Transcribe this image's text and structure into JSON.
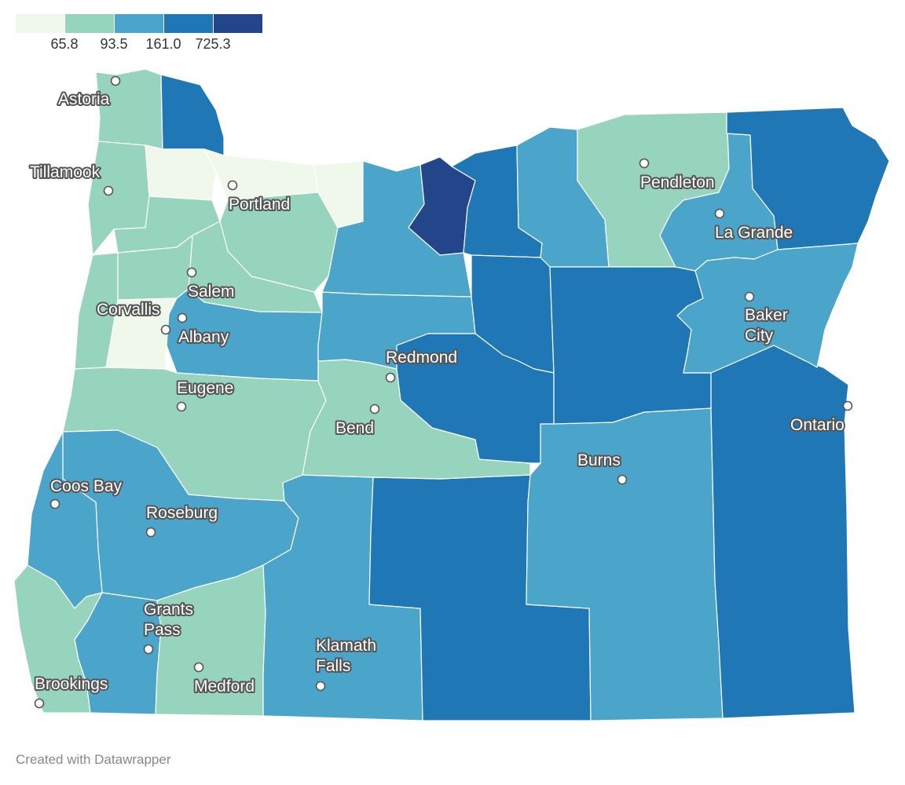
{
  "legend": {
    "colors": [
      "#eff8ea",
      "#97d4be",
      "#4ba5ca",
      "#1f78b5",
      "#23468b"
    ],
    "thresholds": [
      "65.8",
      "93.5",
      "161.0",
      "725.3"
    ]
  },
  "colors": {
    "c1": "#eff8ea",
    "c2": "#97d4be",
    "c3": "#4ba5ca",
    "c4": "#1f78b5",
    "c5": "#23468b"
  },
  "cities": [
    {
      "id": "astoria",
      "lines": [
        "Astoria"
      ]
    },
    {
      "id": "tillamook",
      "lines": [
        "Tillamook"
      ]
    },
    {
      "id": "portland",
      "lines": [
        "Portland"
      ]
    },
    {
      "id": "pendleton",
      "lines": [
        "Pendleton"
      ]
    },
    {
      "id": "la-grande",
      "lines": [
        "La Grande"
      ]
    },
    {
      "id": "salem",
      "lines": [
        "Salem"
      ]
    },
    {
      "id": "corvallis",
      "lines": [
        "Corvallis"
      ]
    },
    {
      "id": "albany",
      "lines": [
        "Albany"
      ]
    },
    {
      "id": "baker-city",
      "lines": [
        "Baker",
        "City"
      ]
    },
    {
      "id": "redmond",
      "lines": [
        "Redmond"
      ]
    },
    {
      "id": "eugene",
      "lines": [
        "Eugene"
      ]
    },
    {
      "id": "bend",
      "lines": [
        "Bend"
      ]
    },
    {
      "id": "ontario",
      "lines": [
        "Ontario"
      ]
    },
    {
      "id": "burns",
      "lines": [
        "Burns"
      ]
    },
    {
      "id": "coos-bay",
      "lines": [
        "Coos Bay"
      ]
    },
    {
      "id": "roseburg",
      "lines": [
        "Roseburg"
      ]
    },
    {
      "id": "grants-pass",
      "lines": [
        "Grants",
        "Pass"
      ]
    },
    {
      "id": "klamath-falls",
      "lines": [
        "Klamath",
        "Falls"
      ]
    },
    {
      "id": "brookings",
      "lines": [
        "Brookings"
      ]
    },
    {
      "id": "medford",
      "lines": [
        "Medford"
      ]
    }
  ],
  "credit": "Created with Datawrapper"
}
